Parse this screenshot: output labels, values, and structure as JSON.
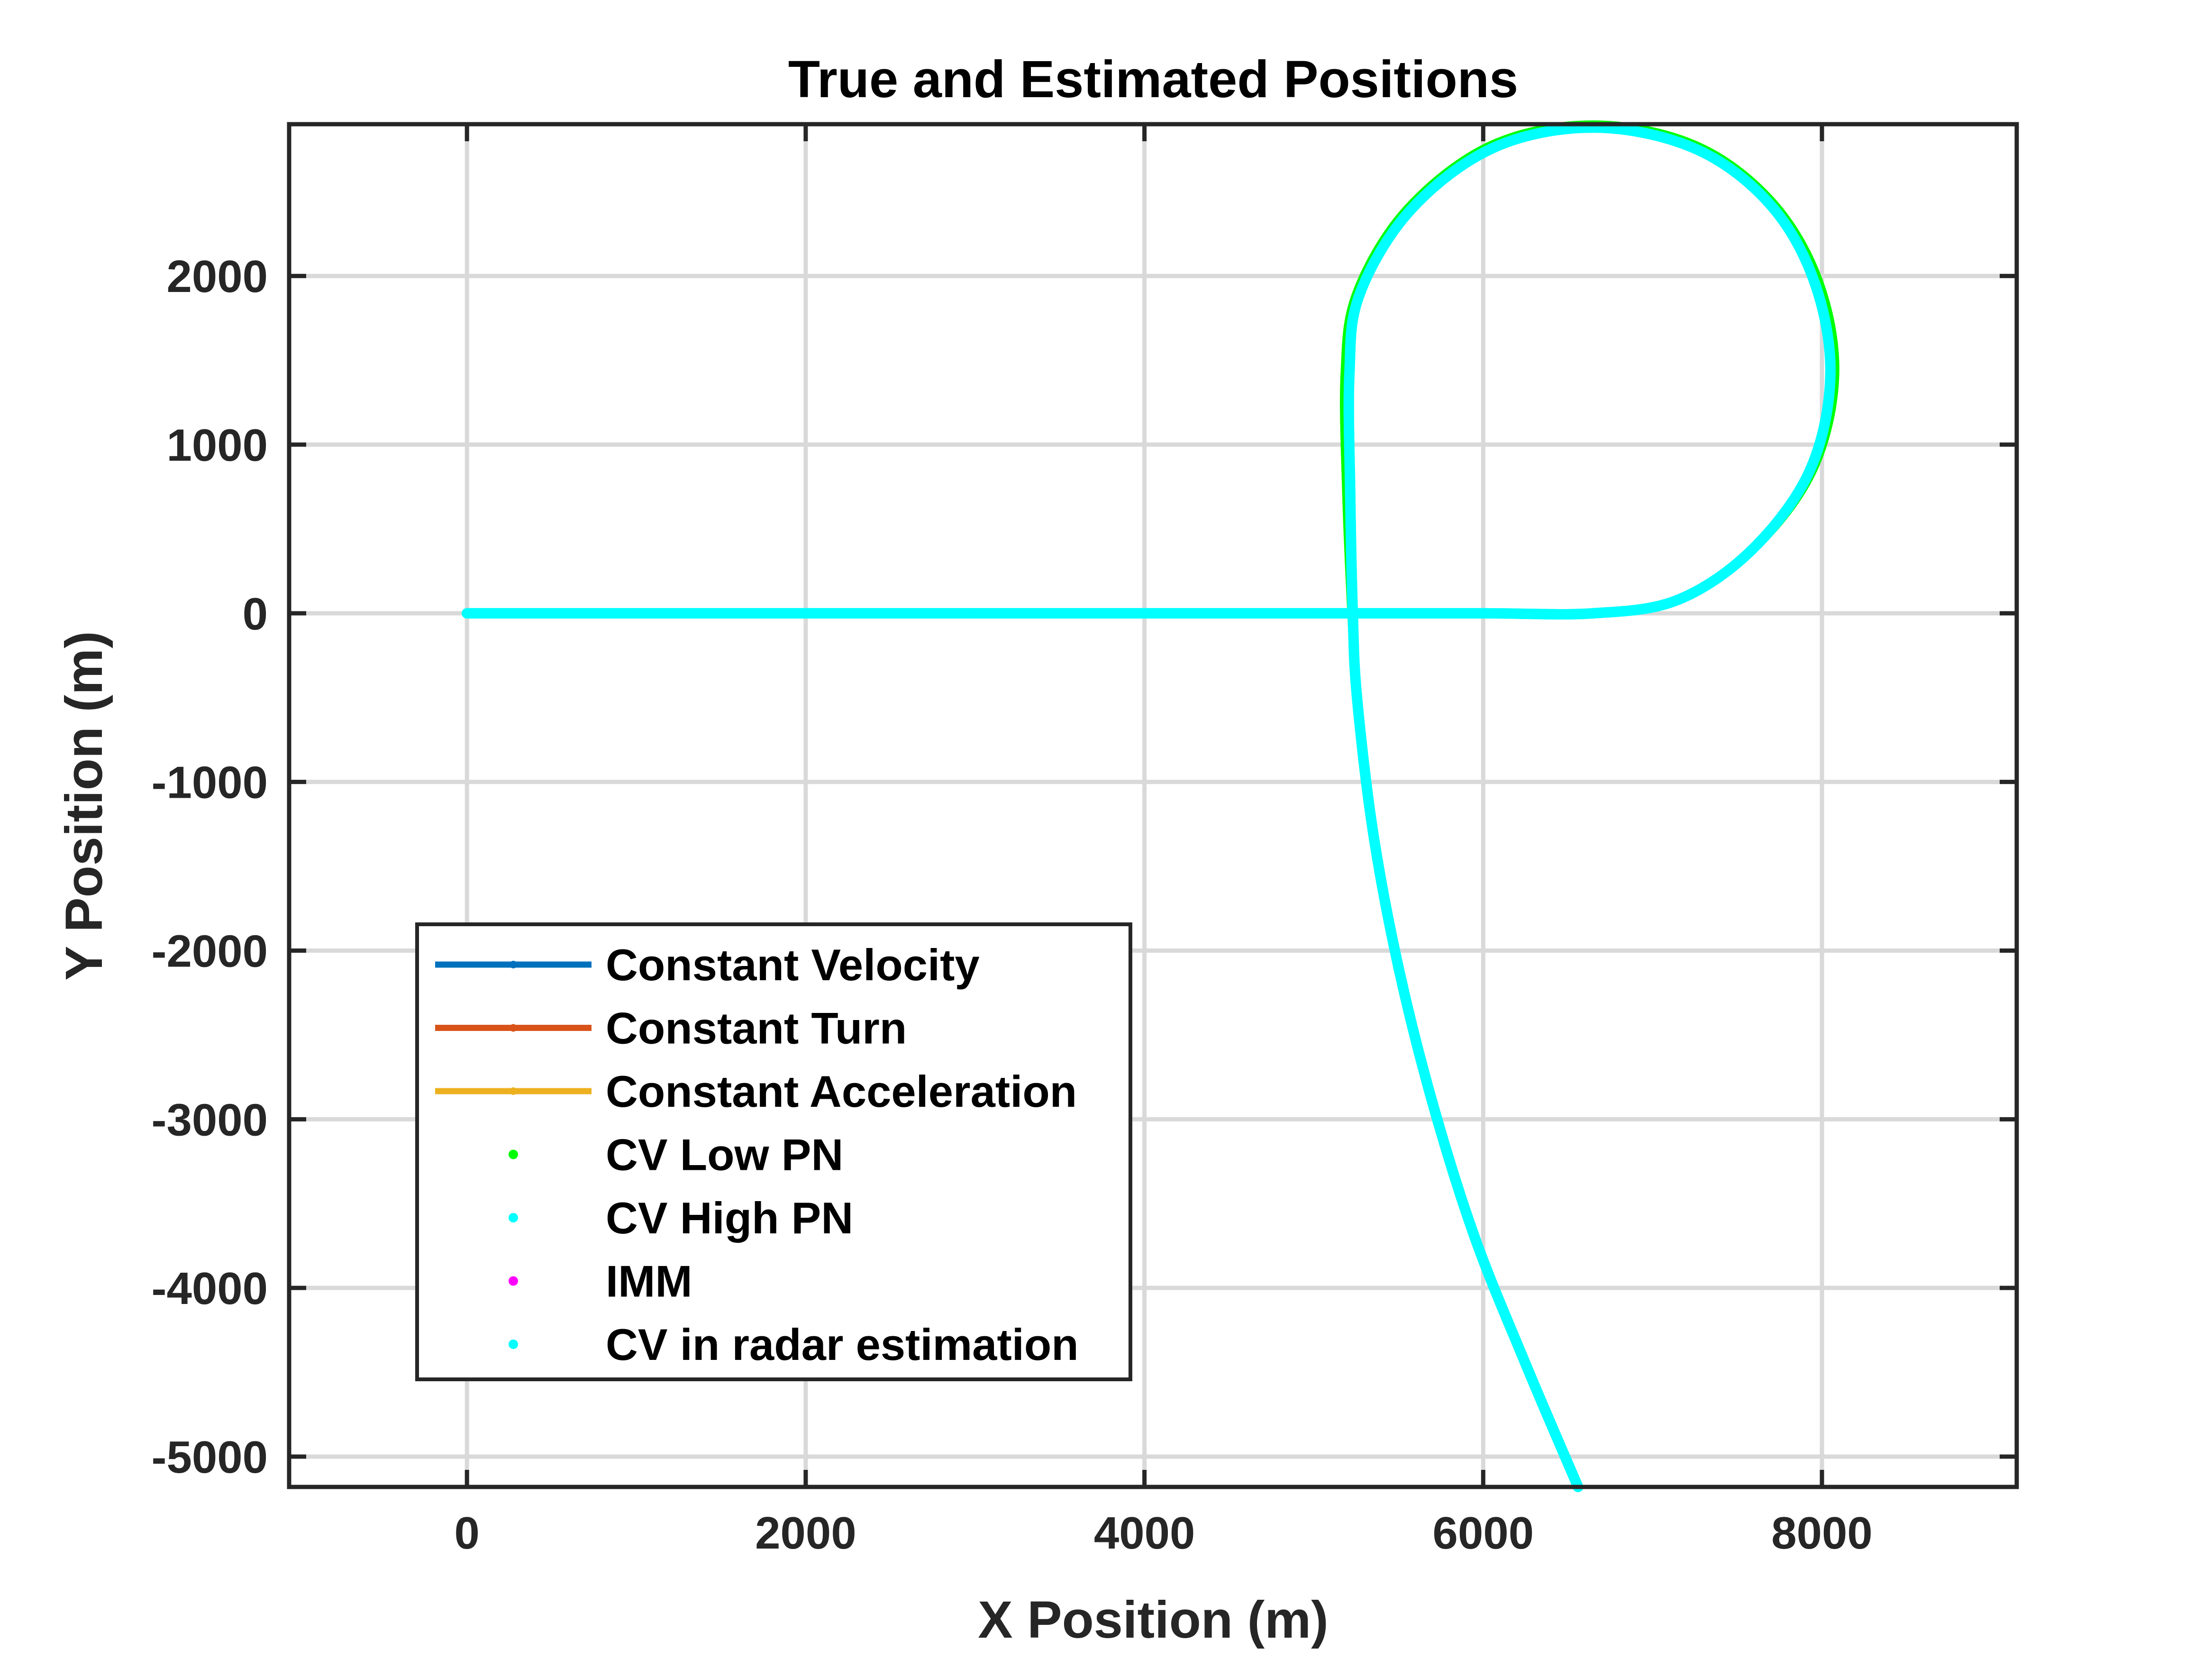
{
  "chart_data": {
    "type": "line",
    "title": "True and Estimated Positions",
    "xlabel": "X Position (m)",
    "ylabel": "Y Position (m)",
    "xlim": [
      -1050,
      9150
    ],
    "ylim": [
      -5180,
      2900
    ],
    "xticks": [
      0,
      2000,
      4000,
      6000,
      8000
    ],
    "yticks": [
      -5000,
      -4000,
      -3000,
      -2000,
      -1000,
      0,
      1000,
      2000
    ],
    "xtick_labels": [
      "0",
      "2000",
      "4000",
      "6000",
      "8000"
    ],
    "ytick_labels": [
      "-5000",
      "-4000",
      "-3000",
      "-2000",
      "-1000",
      "0",
      "1000",
      "2000"
    ],
    "grid": true,
    "legend_position": "lower-left",
    "series": [
      {
        "name": "Constant Velocity",
        "color": "#0072BD",
        "style": "line-dot",
        "points": []
      },
      {
        "name": "Constant Turn",
        "color": "#D95319",
        "style": "line-dot",
        "points": []
      },
      {
        "name": "Constant Acceleration",
        "color": "#EDB120",
        "style": "line-dot",
        "points": []
      },
      {
        "name": "CV Low PN",
        "color": "#00FF00",
        "style": "dots",
        "points": [
          [
            0,
            0
          ],
          [
            1000,
            0
          ],
          [
            2000,
            0
          ],
          [
            3000,
            0
          ],
          [
            4000,
            0
          ],
          [
            5000,
            0
          ],
          [
            6000,
            0
          ],
          [
            6650,
            0
          ],
          [
            7150,
            80
          ],
          [
            7600,
            380
          ],
          [
            7950,
            850
          ],
          [
            8080,
            1420
          ],
          [
            7980,
            1980
          ],
          [
            7700,
            2450
          ],
          [
            7250,
            2780
          ],
          [
            6650,
            2900
          ],
          [
            6050,
            2780
          ],
          [
            5550,
            2400
          ],
          [
            5250,
            1900
          ],
          [
            5180,
            1420
          ],
          [
            5190,
            700
          ],
          [
            5220,
            0
          ],
          [
            5250,
            -500
          ],
          [
            5350,
            -1300
          ],
          [
            5500,
            -2100
          ],
          [
            5700,
            -2900
          ],
          [
            5950,
            -3700
          ],
          [
            6250,
            -4450
          ],
          [
            6560,
            -5180
          ]
        ]
      },
      {
        "name": "CV High PN",
        "color": "#00FFFF",
        "style": "dots",
        "points": [
          [
            0,
            0
          ],
          [
            1000,
            0
          ],
          [
            2000,
            0
          ],
          [
            3000,
            0
          ],
          [
            4000,
            0
          ],
          [
            5000,
            0
          ],
          [
            6000,
            0
          ],
          [
            6650,
            0
          ],
          [
            7150,
            80
          ],
          [
            7590,
            380
          ],
          [
            7930,
            850
          ],
          [
            8050,
            1420
          ],
          [
            7950,
            1980
          ],
          [
            7680,
            2440
          ],
          [
            7240,
            2760
          ],
          [
            6650,
            2880
          ],
          [
            6060,
            2760
          ],
          [
            5570,
            2390
          ],
          [
            5270,
            1890
          ],
          [
            5210,
            1420
          ],
          [
            5215,
            700
          ],
          [
            5230,
            0
          ],
          [
            5255,
            -500
          ],
          [
            5350,
            -1300
          ],
          [
            5500,
            -2100
          ],
          [
            5700,
            -2900
          ],
          [
            5950,
            -3700
          ],
          [
            6250,
            -4450
          ],
          [
            6560,
            -5180
          ]
        ]
      },
      {
        "name": "IMM",
        "color": "#FF00FF",
        "style": "dots",
        "points": []
      },
      {
        "name": "CV in radar estimation",
        "color": "#00FFFF",
        "style": "dots",
        "points": [
          [
            0,
            0
          ],
          [
            1000,
            0
          ],
          [
            2000,
            0
          ],
          [
            3000,
            0
          ],
          [
            4000,
            0
          ],
          [
            5000,
            0
          ],
          [
            6000,
            0
          ],
          [
            6650,
            0
          ],
          [
            7150,
            80
          ],
          [
            7590,
            380
          ],
          [
            7930,
            850
          ],
          [
            8050,
            1420
          ],
          [
            7950,
            1980
          ],
          [
            7680,
            2440
          ],
          [
            7240,
            2760
          ],
          [
            6650,
            2880
          ],
          [
            6060,
            2760
          ],
          [
            5570,
            2390
          ],
          [
            5270,
            1890
          ],
          [
            5210,
            1420
          ],
          [
            5215,
            700
          ],
          [
            5230,
            0
          ],
          [
            5255,
            -500
          ],
          [
            5350,
            -1300
          ],
          [
            5500,
            -2100
          ],
          [
            5700,
            -2900
          ],
          [
            5950,
            -3700
          ],
          [
            6250,
            -4450
          ],
          [
            6560,
            -5180
          ]
        ]
      }
    ]
  }
}
